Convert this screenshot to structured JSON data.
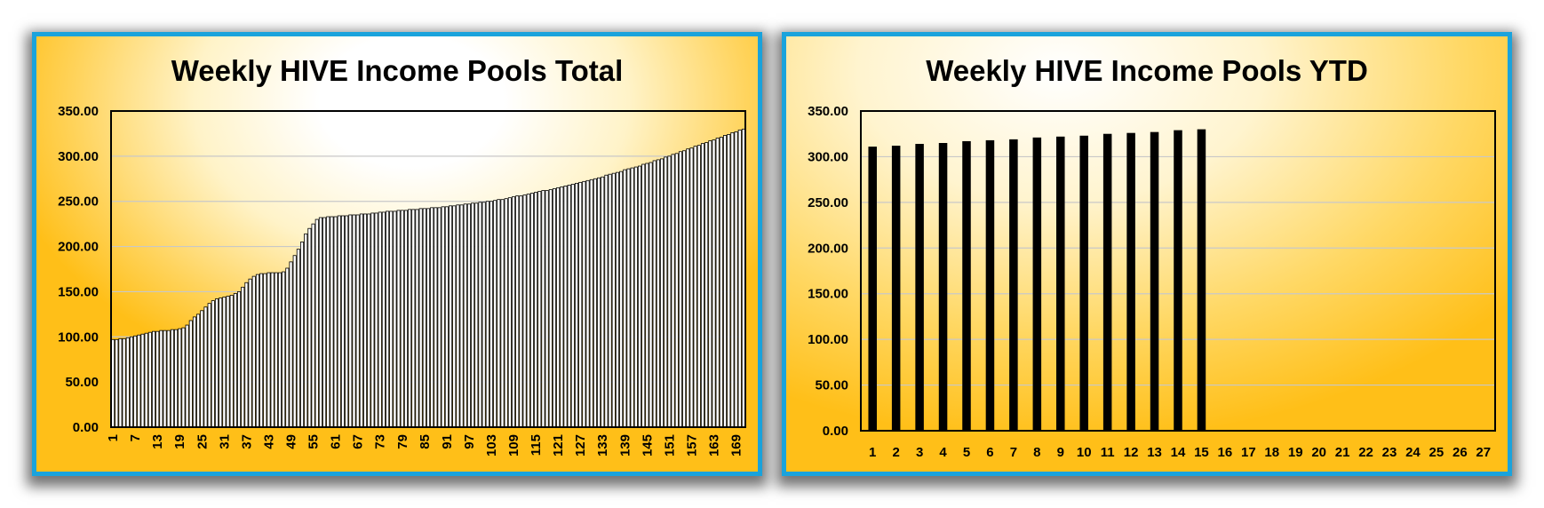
{
  "chart_data": [
    {
      "type": "bar",
      "title": "Weekly HIVE Income Pools Total",
      "xlabel": "",
      "ylabel": "",
      "ylim": [
        0,
        350
      ],
      "yticks": [
        "0.00",
        "50.00",
        "100.00",
        "150.00",
        "200.00",
        "250.00",
        "300.00",
        "350.00"
      ],
      "x_tick_labels": [
        "1",
        "7",
        "13",
        "19",
        "25",
        "31",
        "37",
        "43",
        "49",
        "55",
        "61",
        "67",
        "73",
        "79",
        "85",
        "91",
        "97",
        "103",
        "109",
        "115",
        "121",
        "127",
        "133",
        "139",
        "145",
        "151",
        "157",
        "163",
        "169"
      ],
      "categories": [
        "1",
        "2",
        "3",
        "4",
        "5",
        "6",
        "7",
        "8",
        "9",
        "10",
        "11",
        "12",
        "13",
        "14",
        "15",
        "16",
        "17",
        "18",
        "19",
        "20",
        "21",
        "22",
        "23",
        "24",
        "25",
        "26",
        "27",
        "28",
        "29",
        "30",
        "31",
        "32",
        "33",
        "34",
        "35",
        "36",
        "37",
        "38",
        "39",
        "40",
        "41",
        "42",
        "43",
        "44",
        "45",
        "46",
        "47",
        "48",
        "49",
        "50",
        "51",
        "52",
        "53",
        "54",
        "55",
        "56",
        "57",
        "58",
        "59",
        "60",
        "61",
        "62",
        "63",
        "64",
        "65",
        "66",
        "67",
        "68",
        "69",
        "70",
        "71",
        "72",
        "73",
        "74",
        "75",
        "76",
        "77",
        "78",
        "79",
        "80",
        "81",
        "82",
        "83",
        "84",
        "85",
        "86",
        "87",
        "88",
        "89",
        "90",
        "91",
        "92",
        "93",
        "94",
        "95",
        "96",
        "97",
        "98",
        "99",
        "100",
        "101",
        "102",
        "103",
        "104",
        "105",
        "106",
        "107",
        "108",
        "109",
        "110",
        "111",
        "112",
        "113",
        "114",
        "115",
        "116",
        "117",
        "118",
        "119",
        "120",
        "121",
        "122",
        "123",
        "124",
        "125",
        "126",
        "127",
        "128",
        "129",
        "130",
        "131",
        "132",
        "133",
        "134",
        "135",
        "136",
        "137",
        "138",
        "139",
        "140",
        "141",
        "142",
        "143",
        "144",
        "145",
        "146",
        "147",
        "148",
        "149",
        "150",
        "151",
        "152",
        "153",
        "154",
        "155",
        "156",
        "157",
        "158",
        "159",
        "160",
        "161",
        "162",
        "163",
        "164",
        "165",
        "166",
        "167",
        "168",
        "169",
        "170",
        "171"
      ],
      "values": [
        97,
        97,
        98,
        98,
        99,
        100,
        101,
        102,
        103,
        104,
        105,
        106,
        106,
        107,
        107,
        107,
        108,
        108,
        109,
        110,
        113,
        118,
        122,
        125,
        129,
        133,
        137,
        140,
        142,
        143,
        144,
        145,
        146,
        148,
        150,
        155,
        160,
        164,
        167,
        169,
        170,
        170,
        171,
        171,
        171,
        171,
        172,
        176,
        183,
        190,
        197,
        205,
        214,
        220,
        225,
        230,
        232,
        232,
        233,
        233,
        233,
        234,
        234,
        234,
        235,
        235,
        235,
        236,
        236,
        236,
        237,
        237,
        238,
        238,
        239,
        239,
        239,
        240,
        240,
        240,
        241,
        241,
        241,
        242,
        242,
        242,
        243,
        243,
        243,
        244,
        244,
        245,
        245,
        246,
        246,
        247,
        247,
        248,
        248,
        249,
        249,
        250,
        250,
        251,
        252,
        252,
        253,
        254,
        255,
        256,
        256,
        257,
        258,
        259,
        260,
        261,
        262,
        262,
        263,
        264,
        265,
        266,
        267,
        268,
        269,
        270,
        271,
        272,
        273,
        274,
        275,
        276,
        277,
        279,
        280,
        281,
        282,
        283,
        285,
        286,
        287,
        288,
        289,
        291,
        292,
        293,
        295,
        296,
        297,
        299,
        300,
        302,
        303,
        305,
        306,
        308,
        309,
        311,
        312,
        314,
        315,
        317,
        318,
        320,
        321,
        323,
        324,
        326,
        327,
        329,
        330
      ]
    },
    {
      "type": "bar",
      "title": "Weekly HIVE Income Pools YTD",
      "xlabel": "",
      "ylabel": "",
      "ylim": [
        0,
        350
      ],
      "yticks": [
        "0.00",
        "50.00",
        "100.00",
        "150.00",
        "200.00",
        "250.00",
        "300.00",
        "350.00"
      ],
      "categories": [
        "1",
        "2",
        "3",
        "4",
        "5",
        "6",
        "7",
        "8",
        "9",
        "10",
        "11",
        "12",
        "13",
        "14",
        "15",
        "16",
        "17",
        "18",
        "19",
        "20",
        "21",
        "22",
        "23",
        "24",
        "25",
        "26",
        "27"
      ],
      "values": [
        311,
        312,
        314,
        315,
        317,
        318,
        319,
        321,
        322,
        323,
        325,
        326,
        327,
        329,
        330,
        null,
        null,
        null,
        null,
        null,
        null,
        null,
        null,
        null,
        null,
        null,
        null
      ]
    }
  ]
}
